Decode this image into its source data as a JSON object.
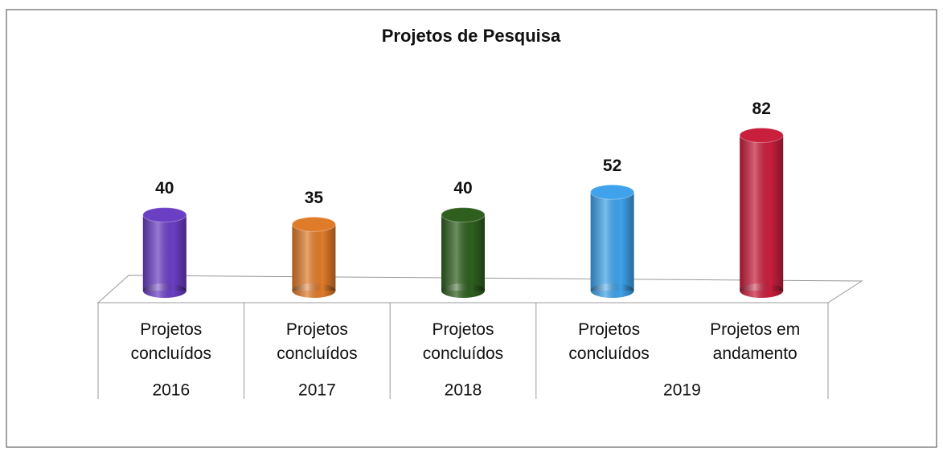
{
  "chart_data": {
    "type": "bar",
    "title": "Projetos de Pesquisa",
    "categories": [
      "Projetos concluídos",
      "Projetos concluídos",
      "Projetos concluídos",
      "Projetos concluídos",
      "Projetos em andamento"
    ],
    "groups": [
      {
        "name": "2016",
        "size": 1
      },
      {
        "name": "2017",
        "size": 1
      },
      {
        "name": "2018",
        "size": 1
      },
      {
        "name": "2019",
        "size": 2
      }
    ],
    "values": [
      40,
      35,
      40,
      52,
      82
    ],
    "colors": [
      "#6b3fc4",
      "#e07b2a",
      "#2f5f1f",
      "#3fa2ea",
      "#c81f3d"
    ]
  }
}
